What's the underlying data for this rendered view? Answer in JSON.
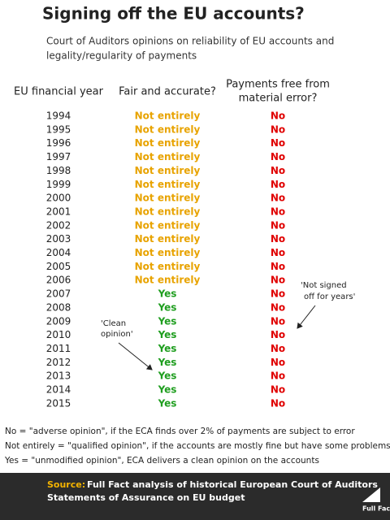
{
  "header": {
    "title": "Signing off the EU accounts?",
    "subtitle": [
      "Court of Auditors opinions on reliability of EU accounts and",
      "legality/regularity of payments"
    ]
  },
  "table": {
    "columns": [
      "EU financial year",
      "Fair and accurate?",
      [
        "Payments free from",
        "material error?"
      ]
    ],
    "rows": [
      [
        1994,
        "Not entirely",
        "No"
      ],
      [
        1995,
        "Not entirely",
        "No"
      ],
      [
        1996,
        "Not entirely",
        "No"
      ],
      [
        1997,
        "Not entirely",
        "No"
      ],
      [
        1998,
        "Not entirely",
        "No"
      ],
      [
        1999,
        "Not entirely",
        "No"
      ],
      [
        2000,
        "Not entirely",
        "No"
      ],
      [
        2001,
        "Not entirely",
        "No"
      ],
      [
        2002,
        "Not entirely",
        "No"
      ],
      [
        2003,
        "Not entirely",
        "No"
      ],
      [
        2004,
        "Not entirely",
        "No"
      ],
      [
        2005,
        "Not entirely",
        "No"
      ],
      [
        2006,
        "Not entirely",
        "No"
      ],
      [
        2007,
        "Yes",
        "No"
      ],
      [
        2008,
        "Yes",
        "No"
      ],
      [
        2009,
        "Yes",
        "No"
      ],
      [
        2010,
        "Yes",
        "No"
      ],
      [
        2011,
        "Yes",
        "No"
      ],
      [
        2012,
        "Yes",
        "No"
      ],
      [
        2013,
        "Yes",
        "No"
      ],
      [
        2014,
        "Yes",
        "No"
      ],
      [
        2015,
        "Yes",
        "No"
      ]
    ],
    "status_colors": {
      "Not entirely": "#e8a300",
      "Yes": "#1f9e1f",
      "No": "#e00000"
    }
  },
  "annotations": {
    "not_signed": [
      "'Not signed",
      "off for years'"
    ],
    "clean": [
      "'Clean",
      "opinion'"
    ]
  },
  "notes": [
    "No = \"adverse opinion\", if the ECA finds over 2% of payments are subject to error",
    "Not entirely = \"qualified opinion\", if the accounts are mostly fine but have some problems",
    "Yes = \"unmodified opinion\", ECA delivers a clean opinion on the accounts"
  ],
  "footer": {
    "source_label": "Source:",
    "source": [
      "Full Fact analysis of historical European Court of Auditors",
      "Statements of Assurance on EU budget"
    ],
    "logo": "Full Fact"
  }
}
